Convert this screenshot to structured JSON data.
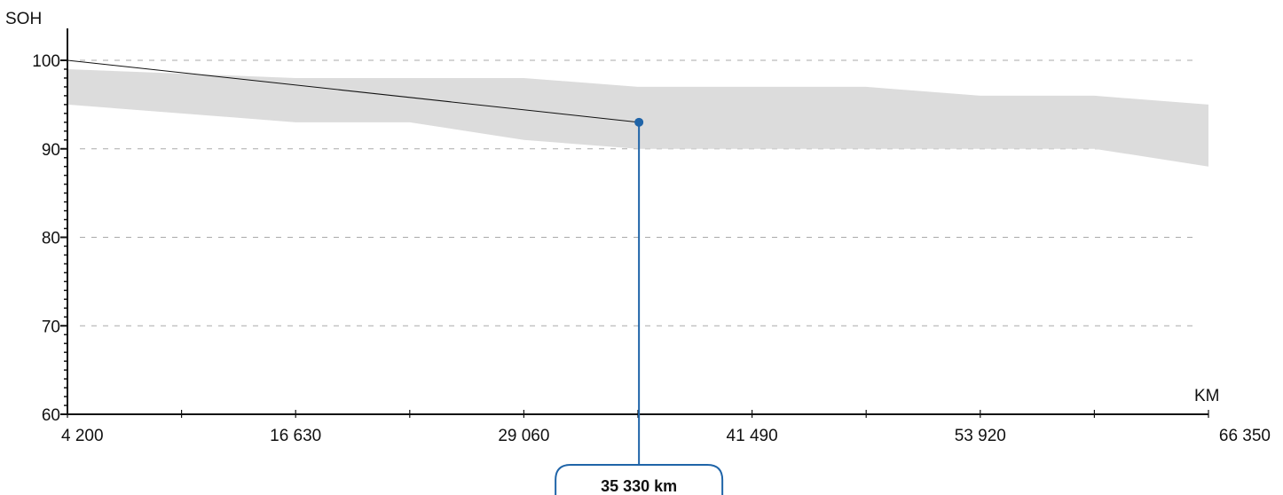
{
  "chart_data": {
    "type": "area",
    "ylabel": "SOH",
    "xlabel": "KM",
    "xlim": [
      4200,
      66350
    ],
    "ylim": [
      60,
      100
    ],
    "x_ticks": [
      4200,
      16630,
      29060,
      41490,
      53920,
      66350
    ],
    "x_tick_labels": [
      "4 200",
      "16 630",
      "29 060",
      "41 490",
      "53 920",
      "66 350"
    ],
    "x_minor_ticks": [
      4200,
      10415,
      16630,
      22845,
      29060,
      35275,
      41490,
      47705,
      53920,
      60135,
      66350
    ],
    "y_ticks": [
      60,
      70,
      80,
      90,
      100
    ],
    "y_tick_labels": [
      "60",
      "70",
      "80",
      "90",
      "100"
    ],
    "grid": "horizontal dashed",
    "band": {
      "x": [
        4200,
        16630,
        22845,
        29060,
        35275,
        41490,
        47705,
        53920,
        60135,
        66350
      ],
      "upper": [
        99,
        98,
        98,
        98,
        97,
        97,
        97,
        96,
        96,
        95
      ],
      "lower": [
        95,
        93,
        93,
        91,
        90,
        90,
        90,
        90,
        90,
        88
      ]
    },
    "series": [
      {
        "x": [
          4200,
          35330
        ],
        "y": [
          100,
          93
        ]
      }
    ],
    "marker": {
      "x": 35330,
      "y": 93,
      "label": "35 330 km"
    },
    "colors": {
      "band": "#dcdcdc",
      "line": "#111111",
      "marker": "#1f64a8",
      "grid": "#aaaaaa",
      "axis": "#111111"
    }
  }
}
